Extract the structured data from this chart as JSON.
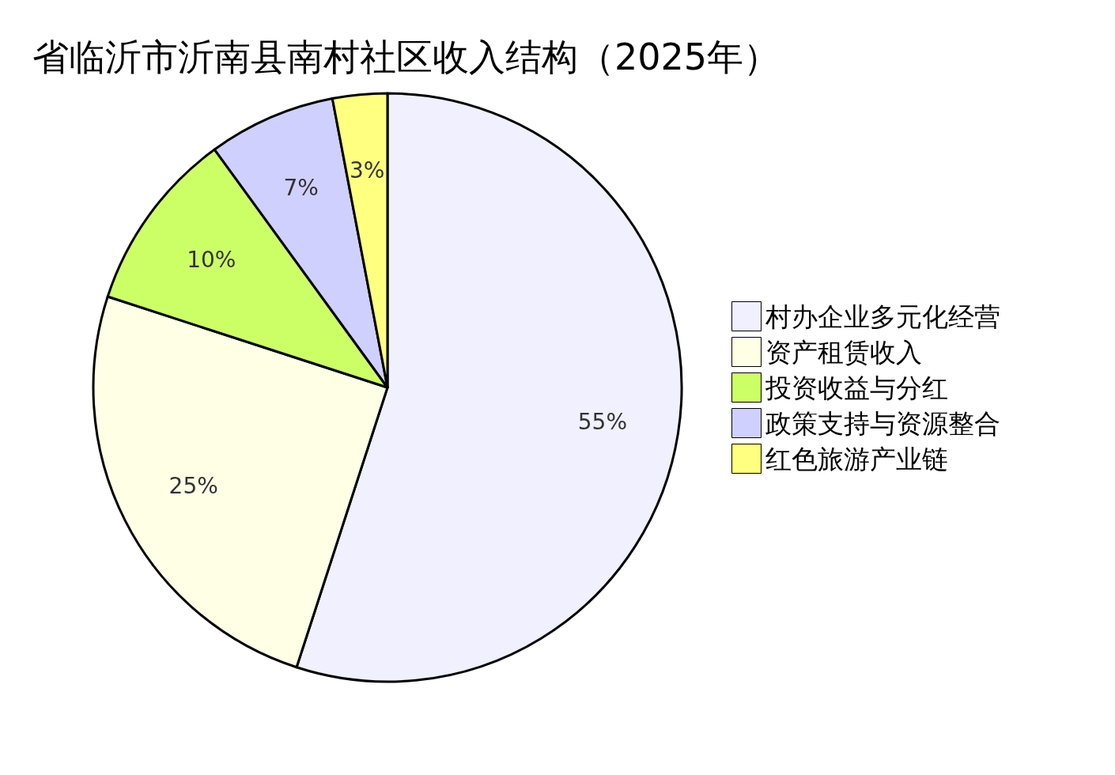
{
  "chart_data": {
    "type": "pie",
    "title": "省临沂市沂南县南村社区收入结构（2025年）",
    "categories": [
      "村办企业多元化经营",
      "资产租赁收入",
      "投资收益与分红",
      "政策支持与资源整合",
      "红色旅游产业链"
    ],
    "values": [
      55,
      25,
      10,
      7,
      3
    ],
    "value_labels": [
      "55%",
      "25%",
      "10%",
      "7%",
      "3%"
    ],
    "colors": [
      "#f0f0ff",
      "#ffffe6",
      "#ccff66",
      "#d0d0ff",
      "#ffff80"
    ],
    "legend": "right"
  }
}
